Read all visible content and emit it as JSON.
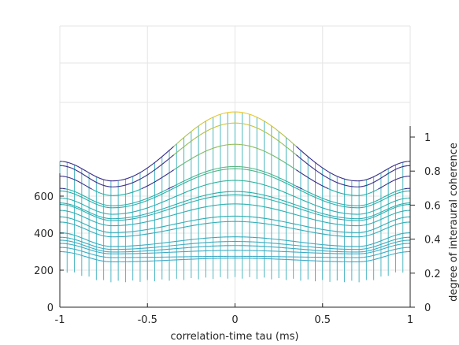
{
  "chart_data": {
    "type": "line",
    "title": "",
    "xlabel": "correlation-time tau (ms)",
    "ylabel": "",
    "zlabel": "degree of interaural coherence",
    "xlim": [
      -1,
      1
    ],
    "y_ticks": [
      "0",
      "200",
      "400",
      "600"
    ],
    "x_ticks": [
      "-1",
      "-0.5",
      "0",
      "0.5",
      "1"
    ],
    "z_ticks": [
      "0",
      "0.2",
      "0.4",
      "0.6",
      "0.8",
      "1"
    ],
    "grid": true,
    "series": [
      {
        "edge": 300,
        "peak": 265,
        "mid": 245
      },
      {
        "edge": 323,
        "peak": 275,
        "mid": 268
      },
      {
        "edge": 345,
        "peak": 307,
        "mid": 288
      },
      {
        "edge": 362,
        "peak": 333,
        "mid": 298
      },
      {
        "edge": 378,
        "peak": 355,
        "mid": 312
      },
      {
        "edge": 402,
        "peak": 380,
        "mid": 328
      },
      {
        "edge": 460,
        "peak": 463,
        "mid": 380
      },
      {
        "edge": 488,
        "peak": 492,
        "mid": 403
      },
      {
        "edge": 523,
        "peak": 558,
        "mid": 440
      },
      {
        "edge": 555,
        "peak": 607,
        "mid": 468
      },
      {
        "edge": 563,
        "peak": 625,
        "mid": 478
      },
      {
        "edge": 590,
        "peak": 685,
        "mid": 502
      },
      {
        "edge": 628,
        "peak": 748,
        "mid": 537
      },
      {
        "edge": 642,
        "peak": 760,
        "mid": 548
      },
      {
        "edge": 708,
        "peak": 880,
        "mid": 603
      },
      {
        "edge": 765,
        "peak": 995,
        "mid": 650
      },
      {
        "edge": 788,
        "peak": 1055,
        "mid": 682
      }
    ],
    "colors": {
      "low": "#3ea9c7",
      "mid": "#20b0a4",
      "high": "#eec722",
      "top": "#352a87",
      "axis": "#262626",
      "grid": "#e6e6e6",
      "mesh_line": "#3ea9c7"
    }
  }
}
